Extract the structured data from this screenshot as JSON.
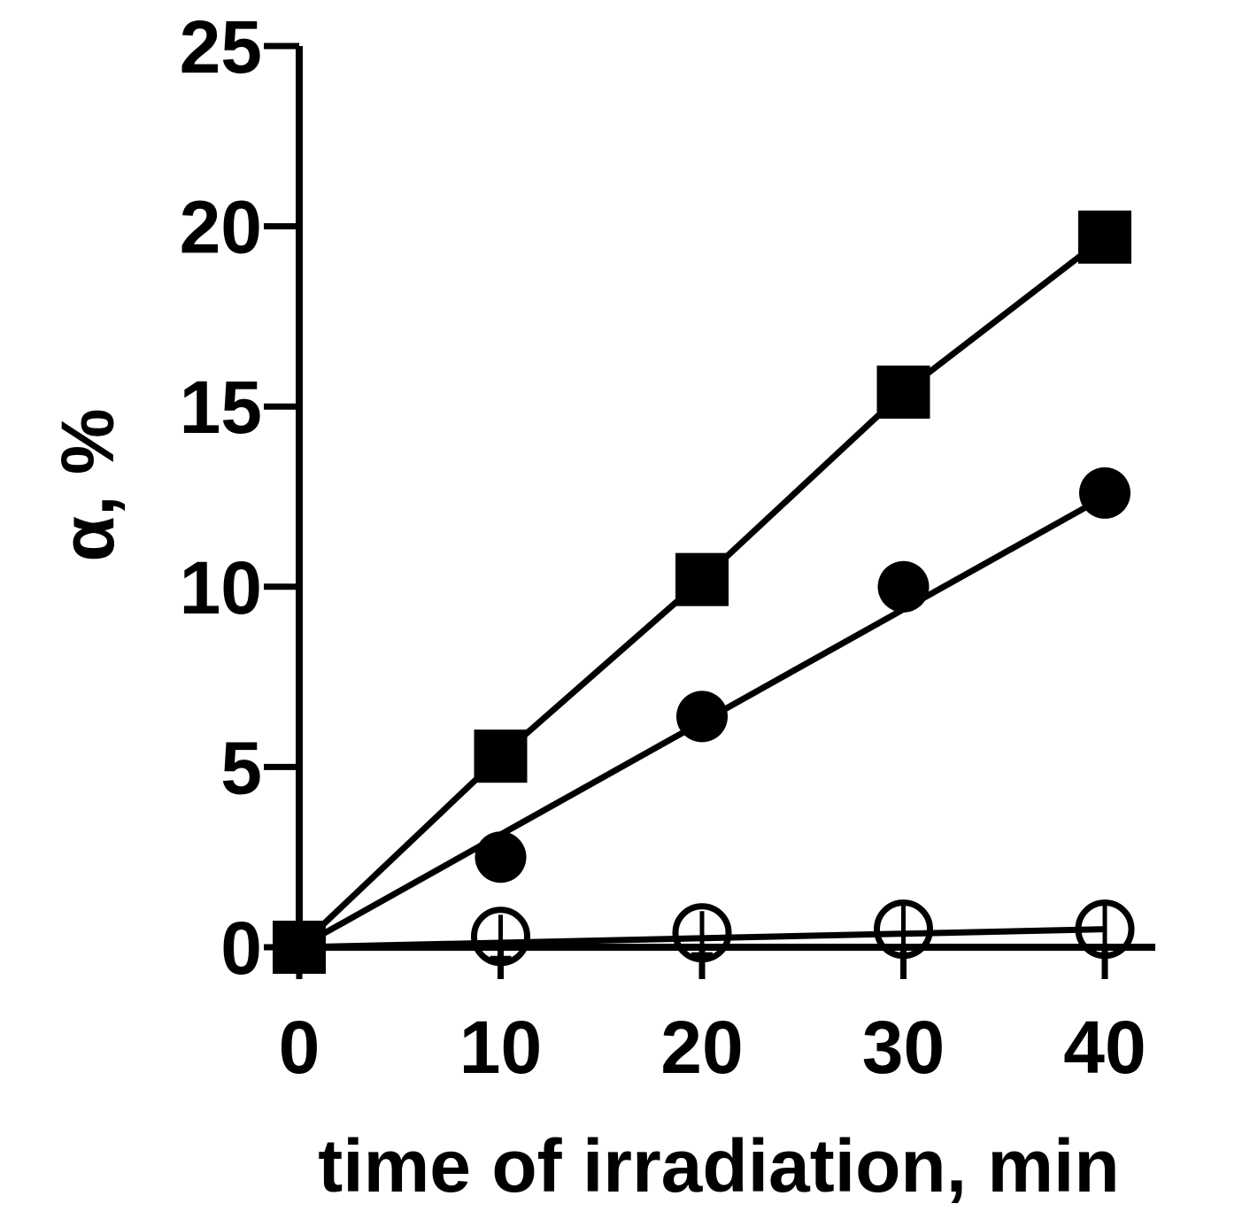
{
  "chart_data": {
    "type": "line",
    "title": "",
    "xlabel": "time of irradiation, min",
    "ylabel": "α, %",
    "xlim": [
      0,
      40
    ],
    "ylim": [
      0,
      25
    ],
    "x_ticks": [
      0,
      10,
      20,
      30,
      40
    ],
    "y_ticks": [
      0,
      5,
      10,
      15,
      20,
      25
    ],
    "x_tick_labels": [
      "0",
      "10",
      "20",
      "30",
      "40"
    ],
    "y_tick_labels": [
      "0",
      "5",
      "10",
      "15",
      "20",
      "25"
    ],
    "grid": false,
    "legend": "none",
    "series": [
      {
        "marker": "square-filled",
        "x": [
          0,
          10,
          20,
          30,
          40
        ],
        "y": [
          0,
          5.3,
          10.2,
          15.4,
          19.7
        ],
        "fit_line": [
          [
            0,
            0
          ],
          [
            10,
            5.3
          ],
          [
            20,
            10.2
          ],
          [
            30,
            15.4
          ],
          [
            40,
            19.7
          ]
        ]
      },
      {
        "marker": "circle-filled",
        "x": [
          0,
          10,
          20,
          30,
          40
        ],
        "y": [
          0,
          2.5,
          6.4,
          10.0,
          12.6
        ],
        "fit_line": [
          [
            0,
            0
          ],
          [
            40,
            12.5
          ]
        ]
      },
      {
        "marker": "circle-open",
        "x": [
          0,
          10,
          20,
          30,
          40
        ],
        "y": [
          0,
          0.3,
          0.4,
          0.5,
          0.5
        ],
        "y_error": [
          0,
          0.6,
          0.6,
          0.7,
          0.7
        ],
        "fit_line": [
          [
            0,
            0
          ],
          [
            40,
            0.5
          ]
        ]
      }
    ]
  }
}
